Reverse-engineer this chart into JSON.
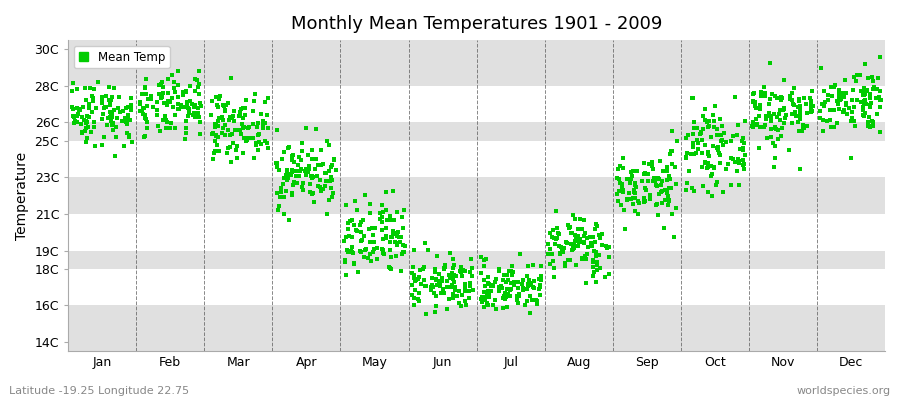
{
  "title": "Monthly Mean Temperatures 1901 - 2009",
  "ylabel": "Temperature",
  "xlabel_labels": [
    "Jan",
    "Feb",
    "Mar",
    "Apr",
    "May",
    "Jun",
    "Jul",
    "Aug",
    "Sep",
    "Oct",
    "Nov",
    "Dec"
  ],
  "ytick_labels": [
    "14C",
    "16C",
    "18C",
    "19C",
    "21C",
    "23C",
    "25C",
    "26C",
    "28C",
    "30C"
  ],
  "ytick_values": [
    14,
    16,
    18,
    19,
    21,
    23,
    25,
    26,
    28,
    30
  ],
  "ylim": [
    13.5,
    30.5
  ],
  "xlim": [
    0,
    12
  ],
  "legend_label": "Mean Temp",
  "marker_color": "#00cc00",
  "marker_size": 5,
  "background_color": "#ffffff",
  "band_color": "#e0e0e0",
  "grid_color": "#555555",
  "bottom_left_text": "Latitude -19.25 Longitude 22.75",
  "bottom_right_text": "worldspecies.org",
  "monthly_means": [
    26.5,
    26.8,
    25.8,
    23.2,
    19.5,
    17.2,
    17.0,
    19.2,
    22.5,
    24.5,
    26.5,
    27.2
  ],
  "monthly_stds": [
    0.9,
    0.85,
    0.85,
    0.95,
    1.1,
    0.75,
    0.7,
    0.85,
    0.95,
    1.05,
    1.0,
    0.9
  ],
  "n_years": 109,
  "seed": 42
}
